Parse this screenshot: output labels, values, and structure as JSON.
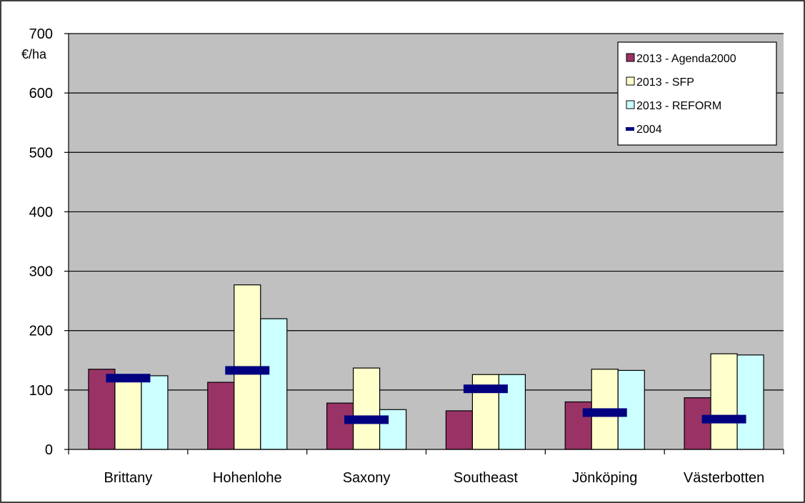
{
  "chart_data": {
    "type": "bar",
    "unit_label": "€/ha",
    "ylim": [
      0,
      700
    ],
    "yticks": [
      "0",
      "100",
      "200",
      "300",
      "400",
      "500",
      "600",
      "700"
    ],
    "grid": true,
    "legend_position": "top-right",
    "categories": [
      "Brittany",
      "Hohenlohe",
      "Saxony",
      "Southeast",
      "Jönköping",
      "Västerbotten"
    ],
    "series": [
      {
        "name": "2013 - Agenda2000",
        "kind": "bar",
        "color": "#993366",
        "values": [
          135,
          113,
          78,
          65,
          80,
          87
        ]
      },
      {
        "name": "2013 - SFP",
        "kind": "bar",
        "color": "#ffffcc",
        "values": [
          120,
          277,
          137,
          126,
          135,
          161
        ]
      },
      {
        "name": "2013 - REFORM",
        "kind": "bar",
        "color": "#ccffff",
        "values": [
          124,
          220,
          67,
          126,
          133,
          159
        ]
      },
      {
        "name": "2004",
        "kind": "marker",
        "color": "#000080",
        "values": [
          120,
          133,
          50,
          102,
          62,
          51
        ]
      }
    ],
    "colors": {
      "plot_background": "#c0c0c0",
      "gridline": "#000000",
      "border": "#000000"
    }
  }
}
